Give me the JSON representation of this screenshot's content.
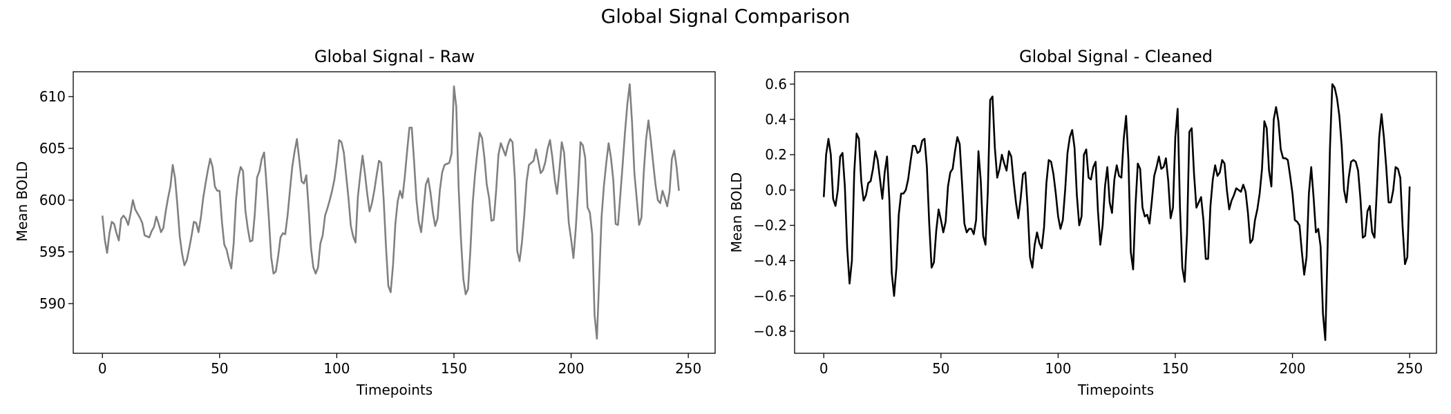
{
  "figure": {
    "title": "Global Signal Comparison",
    "colors": {
      "raw": "#808080",
      "cleaned": "#000000"
    }
  },
  "chart_data": [
    {
      "type": "line",
      "title": "Global Signal - Raw",
      "xlabel": "Timepoints",
      "ylabel": "Mean BOLD",
      "xlim": [
        -12.45,
        261.45
      ],
      "ylim": [
        585.2,
        612.4
      ],
      "xticks": [
        0,
        50,
        100,
        150,
        200,
        250
      ],
      "yticks": [
        590,
        595,
        600,
        605,
        610
      ],
      "grid": false,
      "series": [
        {
          "color": "#808080",
          "x_start": 0,
          "x_step": 1,
          "y": [
            598.5,
            596.2,
            594.9,
            596.8,
            597.9,
            597.7,
            596.8,
            596.1,
            598.2,
            598.5,
            598.2,
            597.6,
            598.7,
            600.0,
            599.1,
            598.7,
            598.3,
            597.8,
            596.6,
            596.5,
            596.4,
            597.0,
            597.4,
            598.4,
            597.7,
            596.9,
            597.3,
            598.9,
            600.2,
            601.3,
            603.4,
            602.1,
            599.5,
            596.5,
            594.8,
            593.7,
            594.2,
            595.3,
            596.5,
            597.9,
            597.8,
            596.9,
            598.3,
            600.2,
            601.6,
            602.9,
            604.0,
            603.2,
            601.3,
            600.9,
            600.9,
            597.9,
            595.7,
            595.2,
            594.2,
            593.4,
            595.8,
            600.0,
            602.2,
            603.2,
            602.8,
            599.0,
            597.3,
            596.0,
            596.1,
            598.6,
            602.2,
            602.8,
            604.0,
            604.6,
            601.6,
            598.3,
            594.5,
            592.9,
            593.1,
            594.6,
            596.4,
            596.8,
            596.7,
            598.5,
            600.9,
            603.2,
            604.7,
            605.9,
            603.9,
            601.8,
            601.6,
            602.4,
            599.2,
            595.4,
            593.5,
            592.9,
            593.5,
            595.8,
            596.6,
            598.5,
            599.2,
            600.0,
            600.9,
            602.0,
            603.7,
            605.8,
            605.6,
            604.6,
            602.4,
            600.2,
            597.5,
            596.5,
            595.9,
            600.3,
            602.4,
            604.3,
            602.6,
            600.6,
            598.9,
            599.7,
            600.9,
            602.4,
            603.8,
            603.6,
            600.1,
            595.5,
            591.7,
            591.1,
            593.7,
            597.7,
            599.9,
            600.9,
            600.2,
            602.2,
            604.7,
            607.0,
            607.0,
            603.7,
            600.0,
            597.9,
            596.9,
            599.1,
            601.5,
            602.1,
            600.7,
            598.8,
            597.5,
            598.2,
            601.0,
            602.7,
            603.4,
            603.5,
            603.6,
            604.5,
            611.0,
            609.0,
            601.2,
            596.2,
            592.4,
            590.9,
            591.4,
            595.1,
            599.7,
            602.5,
            604.7,
            606.5,
            606.0,
            604.1,
            601.5,
            600.2,
            598.0,
            598.1,
            600.9,
            604.4,
            605.5,
            604.9,
            604.3,
            605.3,
            605.9,
            605.6,
            602.0,
            595.1,
            594.1,
            595.9,
            598.5,
            601.8,
            603.4,
            603.6,
            603.8,
            604.9,
            603.8,
            602.6,
            602.9,
            603.7,
            605.0,
            605.8,
            604.1,
            602.0,
            600.6,
            602.9,
            605.6,
            604.6,
            601.3,
            597.8,
            596.2,
            594.4,
            597.3,
            601.2,
            605.6,
            605.3,
            604.1,
            599.3,
            598.8,
            596.7,
            588.9,
            586.6,
            592.5,
            598.4,
            601.4,
            603.6,
            605.5,
            604.1,
            601.9,
            597.7,
            597.6,
            600.5,
            603.5,
            606.6,
            609.3,
            611.2,
            607.5,
            602.6,
            600.1,
            597.6,
            598.3,
            602.7,
            605.9,
            607.7,
            605.8,
            603.6,
            601.5,
            600.0,
            599.7,
            600.9,
            600.2,
            599.4,
            600.8,
            604.0,
            604.8,
            603.2,
            600.9
          ]
        }
      ]
    },
    {
      "type": "line",
      "title": "Global Signal - Cleaned",
      "xlabel": "Timepoints",
      "ylabel": "Mean BOLD",
      "xlim": [
        -12.45,
        261.45
      ],
      "ylim": [
        -0.925,
        0.67
      ],
      "xticks": [
        0,
        50,
        100,
        150,
        200,
        250
      ],
      "yticks": [
        -0.8,
        -0.6,
        -0.4,
        -0.2,
        0.0,
        0.2,
        0.4,
        0.6
      ],
      "grid": false,
      "series": [
        {
          "color": "#000000",
          "x_start": 0,
          "x_step": 1,
          "y": [
            -0.04,
            0.2,
            0.29,
            0.2,
            -0.05,
            -0.09,
            0.0,
            0.19,
            0.21,
            0.02,
            -0.33,
            -0.53,
            -0.4,
            0.1,
            0.32,
            0.29,
            0.05,
            -0.06,
            -0.03,
            0.04,
            0.05,
            0.12,
            0.22,
            0.17,
            0.06,
            -0.05,
            0.1,
            0.19,
            -0.06,
            -0.47,
            -0.6,
            -0.44,
            -0.14,
            -0.02,
            -0.02,
            0.0,
            0.06,
            0.16,
            0.25,
            0.25,
            0.21,
            0.22,
            0.28,
            0.29,
            0.13,
            -0.19,
            -0.44,
            -0.41,
            -0.23,
            -0.11,
            -0.17,
            -0.24,
            -0.18,
            0.02,
            0.1,
            0.12,
            0.22,
            0.3,
            0.26,
            0.04,
            -0.19,
            -0.24,
            -0.22,
            -0.22,
            -0.25,
            -0.17,
            0.22,
            0.05,
            -0.26,
            -0.31,
            -0.01,
            0.51,
            0.53,
            0.24,
            0.07,
            0.12,
            0.2,
            0.15,
            0.11,
            0.22,
            0.19,
            0.05,
            -0.07,
            -0.16,
            -0.05,
            0.09,
            0.1,
            -0.1,
            -0.38,
            -0.44,
            -0.31,
            -0.24,
            -0.3,
            -0.33,
            -0.21,
            0.04,
            0.17,
            0.16,
            0.09,
            -0.02,
            -0.15,
            -0.22,
            -0.17,
            0.0,
            0.21,
            0.3,
            0.34,
            0.24,
            -0.03,
            -0.2,
            -0.15,
            0.2,
            0.23,
            0.07,
            0.06,
            0.13,
            0.16,
            -0.12,
            -0.31,
            -0.2,
            0.02,
            0.13,
            -0.07,
            -0.13,
            0.06,
            0.14,
            0.08,
            0.07,
            0.29,
            0.42,
            0.17,
            -0.35,
            -0.45,
            -0.09,
            0.15,
            0.12,
            -0.1,
            -0.15,
            -0.14,
            -0.19,
            -0.06,
            0.08,
            0.13,
            0.19,
            0.12,
            0.13,
            0.18,
            0.05,
            -0.16,
            -0.1,
            0.3,
            0.46,
            -0.1,
            -0.44,
            -0.52,
            -0.25,
            0.33,
            0.35,
            0.09,
            -0.1,
            -0.07,
            -0.04,
            -0.17,
            -0.39,
            -0.39,
            -0.09,
            0.06,
            0.14,
            0.08,
            0.1,
            0.17,
            0.15,
            0.0,
            -0.11,
            -0.06,
            -0.03,
            0.01,
            0.0,
            -0.01,
            0.03,
            -0.01,
            -0.13,
            -0.3,
            -0.28,
            -0.17,
            -0.11,
            -0.02,
            0.12,
            0.39,
            0.35,
            0.11,
            0.02,
            0.4,
            0.47,
            0.39,
            0.23,
            0.18,
            0.18,
            0.17,
            0.08,
            -0.02,
            -0.17,
            -0.18,
            -0.2,
            -0.35,
            -0.48,
            -0.38,
            -0.02,
            0.13,
            -0.04,
            -0.24,
            -0.22,
            -0.32,
            -0.7,
            -0.85,
            -0.32,
            0.24,
            0.6,
            0.58,
            0.52,
            0.42,
            0.25,
            0.0,
            -0.07,
            0.07,
            0.16,
            0.17,
            0.16,
            0.11,
            -0.05,
            -0.27,
            -0.26,
            -0.12,
            -0.09,
            -0.24,
            -0.27,
            0.0,
            0.3,
            0.43,
            0.3,
            0.13,
            -0.07,
            -0.07,
            0.0,
            0.13,
            0.12,
            0.07,
            -0.21,
            -0.42,
            -0.38,
            0.02
          ]
        }
      ]
    }
  ]
}
